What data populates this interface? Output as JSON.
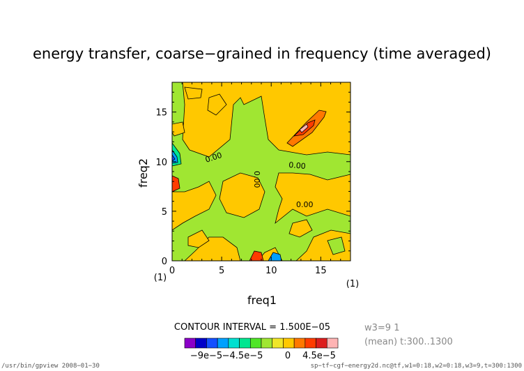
{
  "chart_data": {
    "type": "heatmap",
    "title": "energy transfer, coarse−grained in frequency (time averaged)",
    "xlabel": "freq1",
    "ylabel": "freq2",
    "xlim": [
      0,
      18
    ],
    "ylim": [
      0,
      18
    ],
    "xticks": [
      0,
      5,
      10,
      15
    ],
    "yticks": [
      0,
      5,
      10,
      15
    ],
    "x_unit": "(1)",
    "y_unit": "(1)",
    "contour_interval_text": "CONTOUR INTERVAL = 1.500E−05",
    "contour_labels": [
      "0.00",
      "0.00",
      "0.00",
      "0.00"
    ],
    "colorbar_tick_labels": [
      "−9e−5",
      "−4.5e−5",
      "0",
      "4.5e−5"
    ],
    "colorbar_colors": [
      "#8b00c8",
      "#0000c8",
      "#1450ff",
      "#00a0ff",
      "#00e0d0",
      "#00e690",
      "#50e628",
      "#a0e632",
      "#f0e628",
      "#ffc800",
      "#ff7800",
      "#ff3c00",
      "#dc1e1e",
      "#ffb4b4"
    ],
    "background_level_color": "#ffc800",
    "zero_band_color": "#a0e632",
    "positive_feature_colors": [
      "#ff7800",
      "#ff3c00",
      "#dc1e1e",
      "#ffb4b4"
    ],
    "negative_feature_colors": [
      "#00e690",
      "#00a0ff",
      "#1450ff"
    ],
    "side_info_lines": [
      "w3=9 1",
      "(mean) t:300..1300"
    ],
    "footer_left": "/usr/bin/gpview  2008−01−30",
    "footer_right": "sp−tf−cgf−energy2d.nc@tf,w1=0:18,w2=0:18,w3=9,t=300:1300"
  }
}
